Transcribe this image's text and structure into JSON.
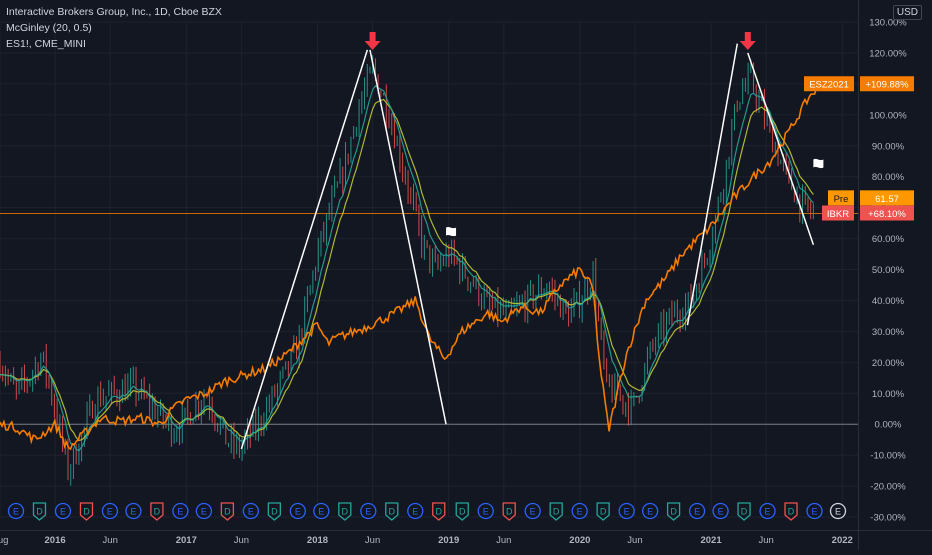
{
  "legend": {
    "main": "Interactive Brokers Group, Inc., 1D, Cboe BZX",
    "indicator": "McGinley (20, 0.5)",
    "compare": "ES1!, CME_MINI"
  },
  "currency": "USD",
  "colors": {
    "background": "#131722",
    "grid": "#1e222d",
    "axis_text": "#b2b5be",
    "es_line": "#f57c00",
    "mcginley": "#26a69a",
    "mcginley2": "#c0ca33",
    "candle_up": "#26a69a",
    "candle_down": "#ef5350",
    "trend_lines": "#ffffff",
    "arrow": "#f23645",
    "zero_line": "#787b86",
    "price_line": "#f57c00",
    "earnings": "#2962ff",
    "dividend_green": "#26a69a",
    "dividend_red": "#ef5350"
  },
  "chart_data": {
    "type": "line",
    "title": "Interactive Brokers Group, Inc., 1D, Cboe BZX",
    "y_axis": {
      "unit": "%",
      "scale": "percent change",
      "ylim": [
        -30,
        130
      ],
      "tick_labels": [
        "130.00%",
        "120.00%",
        "110.00%",
        "100.00%",
        "90.00%",
        "80.00%",
        "70.00%",
        "60.00%",
        "50.00%",
        "40.00%",
        "30.00%",
        "20.00%",
        "10.00%",
        "0.00%",
        "-10.00%",
        "-20.00%",
        "-30.00%"
      ],
      "tick_values": [
        130,
        120,
        110,
        100,
        90,
        80,
        70,
        60,
        50,
        40,
        30,
        20,
        10,
        0,
        -10,
        -20,
        -30
      ]
    },
    "x_axis": {
      "range": [
        2015.58,
        2022.12
      ],
      "tick_labels": [
        "Aug",
        "2016",
        "Jun",
        "2017",
        "Jun",
        "2018",
        "Jun",
        "2019",
        "Jun",
        "2020",
        "Jun",
        "2021",
        "Jun",
        "2022"
      ],
      "tick_values": [
        2015.58,
        2016.0,
        2016.42,
        2017.0,
        2017.42,
        2018.0,
        2018.42,
        2019.0,
        2019.42,
        2020.0,
        2020.42,
        2021.0,
        2021.42,
        2022.0
      ]
    },
    "grid": true,
    "series": [
      {
        "name": "ESZ2021",
        "color": "#f57c00",
        "last_label": "+109.88%",
        "x": [
          2015.58,
          2015.7,
          2015.85,
          2016.0,
          2016.1,
          2016.2,
          2016.35,
          2016.5,
          2016.65,
          2016.8,
          2016.9,
          2017.0,
          2017.15,
          2017.3,
          2017.45,
          2017.6,
          2017.75,
          2017.9,
          2018.0,
          2018.08,
          2018.15,
          2018.35,
          2018.55,
          2018.75,
          2018.85,
          2018.97,
          2019.1,
          2019.3,
          2019.4,
          2019.55,
          2019.7,
          2019.85,
          2020.0,
          2020.1,
          2020.15,
          2020.22,
          2020.35,
          2020.5,
          2020.65,
          2020.78,
          2020.9,
          2021.0,
          2021.15,
          2021.3,
          2021.45,
          2021.6,
          2021.75,
          2021.85
        ],
        "y": [
          0,
          -1,
          -5,
          0,
          -8,
          -4,
          2,
          1,
          2,
          0,
          5,
          8,
          10,
          14,
          16,
          18,
          22,
          28,
          32,
          26,
          28,
          31,
          35,
          40,
          28,
          21,
          30,
          36,
          33,
          38,
          36,
          45,
          50,
          44,
          20,
          -2,
          22,
          40,
          47,
          55,
          60,
          64,
          72,
          79,
          85,
          95,
          106,
          110
        ]
      },
      {
        "name": "IBKR",
        "color": "#ef5350",
        "last_label": "+68.10%",
        "x": [
          2015.58,
          2015.7,
          2015.8,
          2015.9,
          2016.0,
          2016.1,
          2016.2,
          2016.3,
          2016.45,
          2016.6,
          2016.75,
          2016.9,
          2017.0,
          2017.15,
          2017.3,
          2017.4,
          2017.55,
          2017.7,
          2017.85,
          2018.0,
          2018.1,
          2018.2,
          2018.3,
          2018.42,
          2018.55,
          2018.7,
          2018.8,
          2018.9,
          2019.0,
          2019.1,
          2019.2,
          2019.3,
          2019.45,
          2019.6,
          2019.75,
          2019.9,
          2020.0,
          2020.1,
          2020.15,
          2020.2,
          2020.28,
          2020.4,
          2020.55,
          2020.7,
          2020.85,
          2021.0,
          2021.1,
          2021.2,
          2021.3,
          2021.4,
          2021.5,
          2021.6,
          2021.7,
          2021.78
        ],
        "y": [
          20,
          10,
          15,
          22,
          5,
          -15,
          -5,
          8,
          10,
          12,
          5,
          -2,
          2,
          10,
          -5,
          -8,
          0,
          12,
          25,
          55,
          70,
          82,
          100,
          115,
          100,
          75,
          58,
          50,
          55,
          50,
          45,
          38,
          35,
          40,
          45,
          35,
          40,
          48,
          30,
          12,
          10,
          5,
          25,
          35,
          40,
          60,
          80,
          105,
          112,
          100,
          88,
          78,
          70,
          68
        ]
      }
    ],
    "mcginley_period": 20,
    "arrows_at": [
      2018.42,
      2021.28
    ],
    "trend_lines": [
      {
        "from": [
          2017.42,
          -8
        ],
        "to": [
          2018.38,
          121
        ]
      },
      {
        "from": [
          2018.4,
          121
        ],
        "to": [
          2018.98,
          0
        ]
      },
      {
        "from": [
          2020.82,
          32
        ],
        "to": [
          2021.2,
          123
        ]
      },
      {
        "from": [
          2021.28,
          120
        ],
        "to": [
          2021.78,
          58
        ]
      }
    ],
    "flags_at": [
      [
        2018.98,
        60
      ],
      [
        2021.78,
        82
      ]
    ],
    "horizontal_price_line": 68.1,
    "badges": {
      "es": "ESZ2021",
      "es_value": "+109.88%",
      "pre": "Pre",
      "pre_value": "61.57",
      "ibkr": "IBKR",
      "ibkr_value": "+68.10%"
    },
    "events_count": 36,
    "events_pattern": "EDEDEEDEEDEDEEDEDEDDEDEDEDEEDEEDEDEE"
  }
}
